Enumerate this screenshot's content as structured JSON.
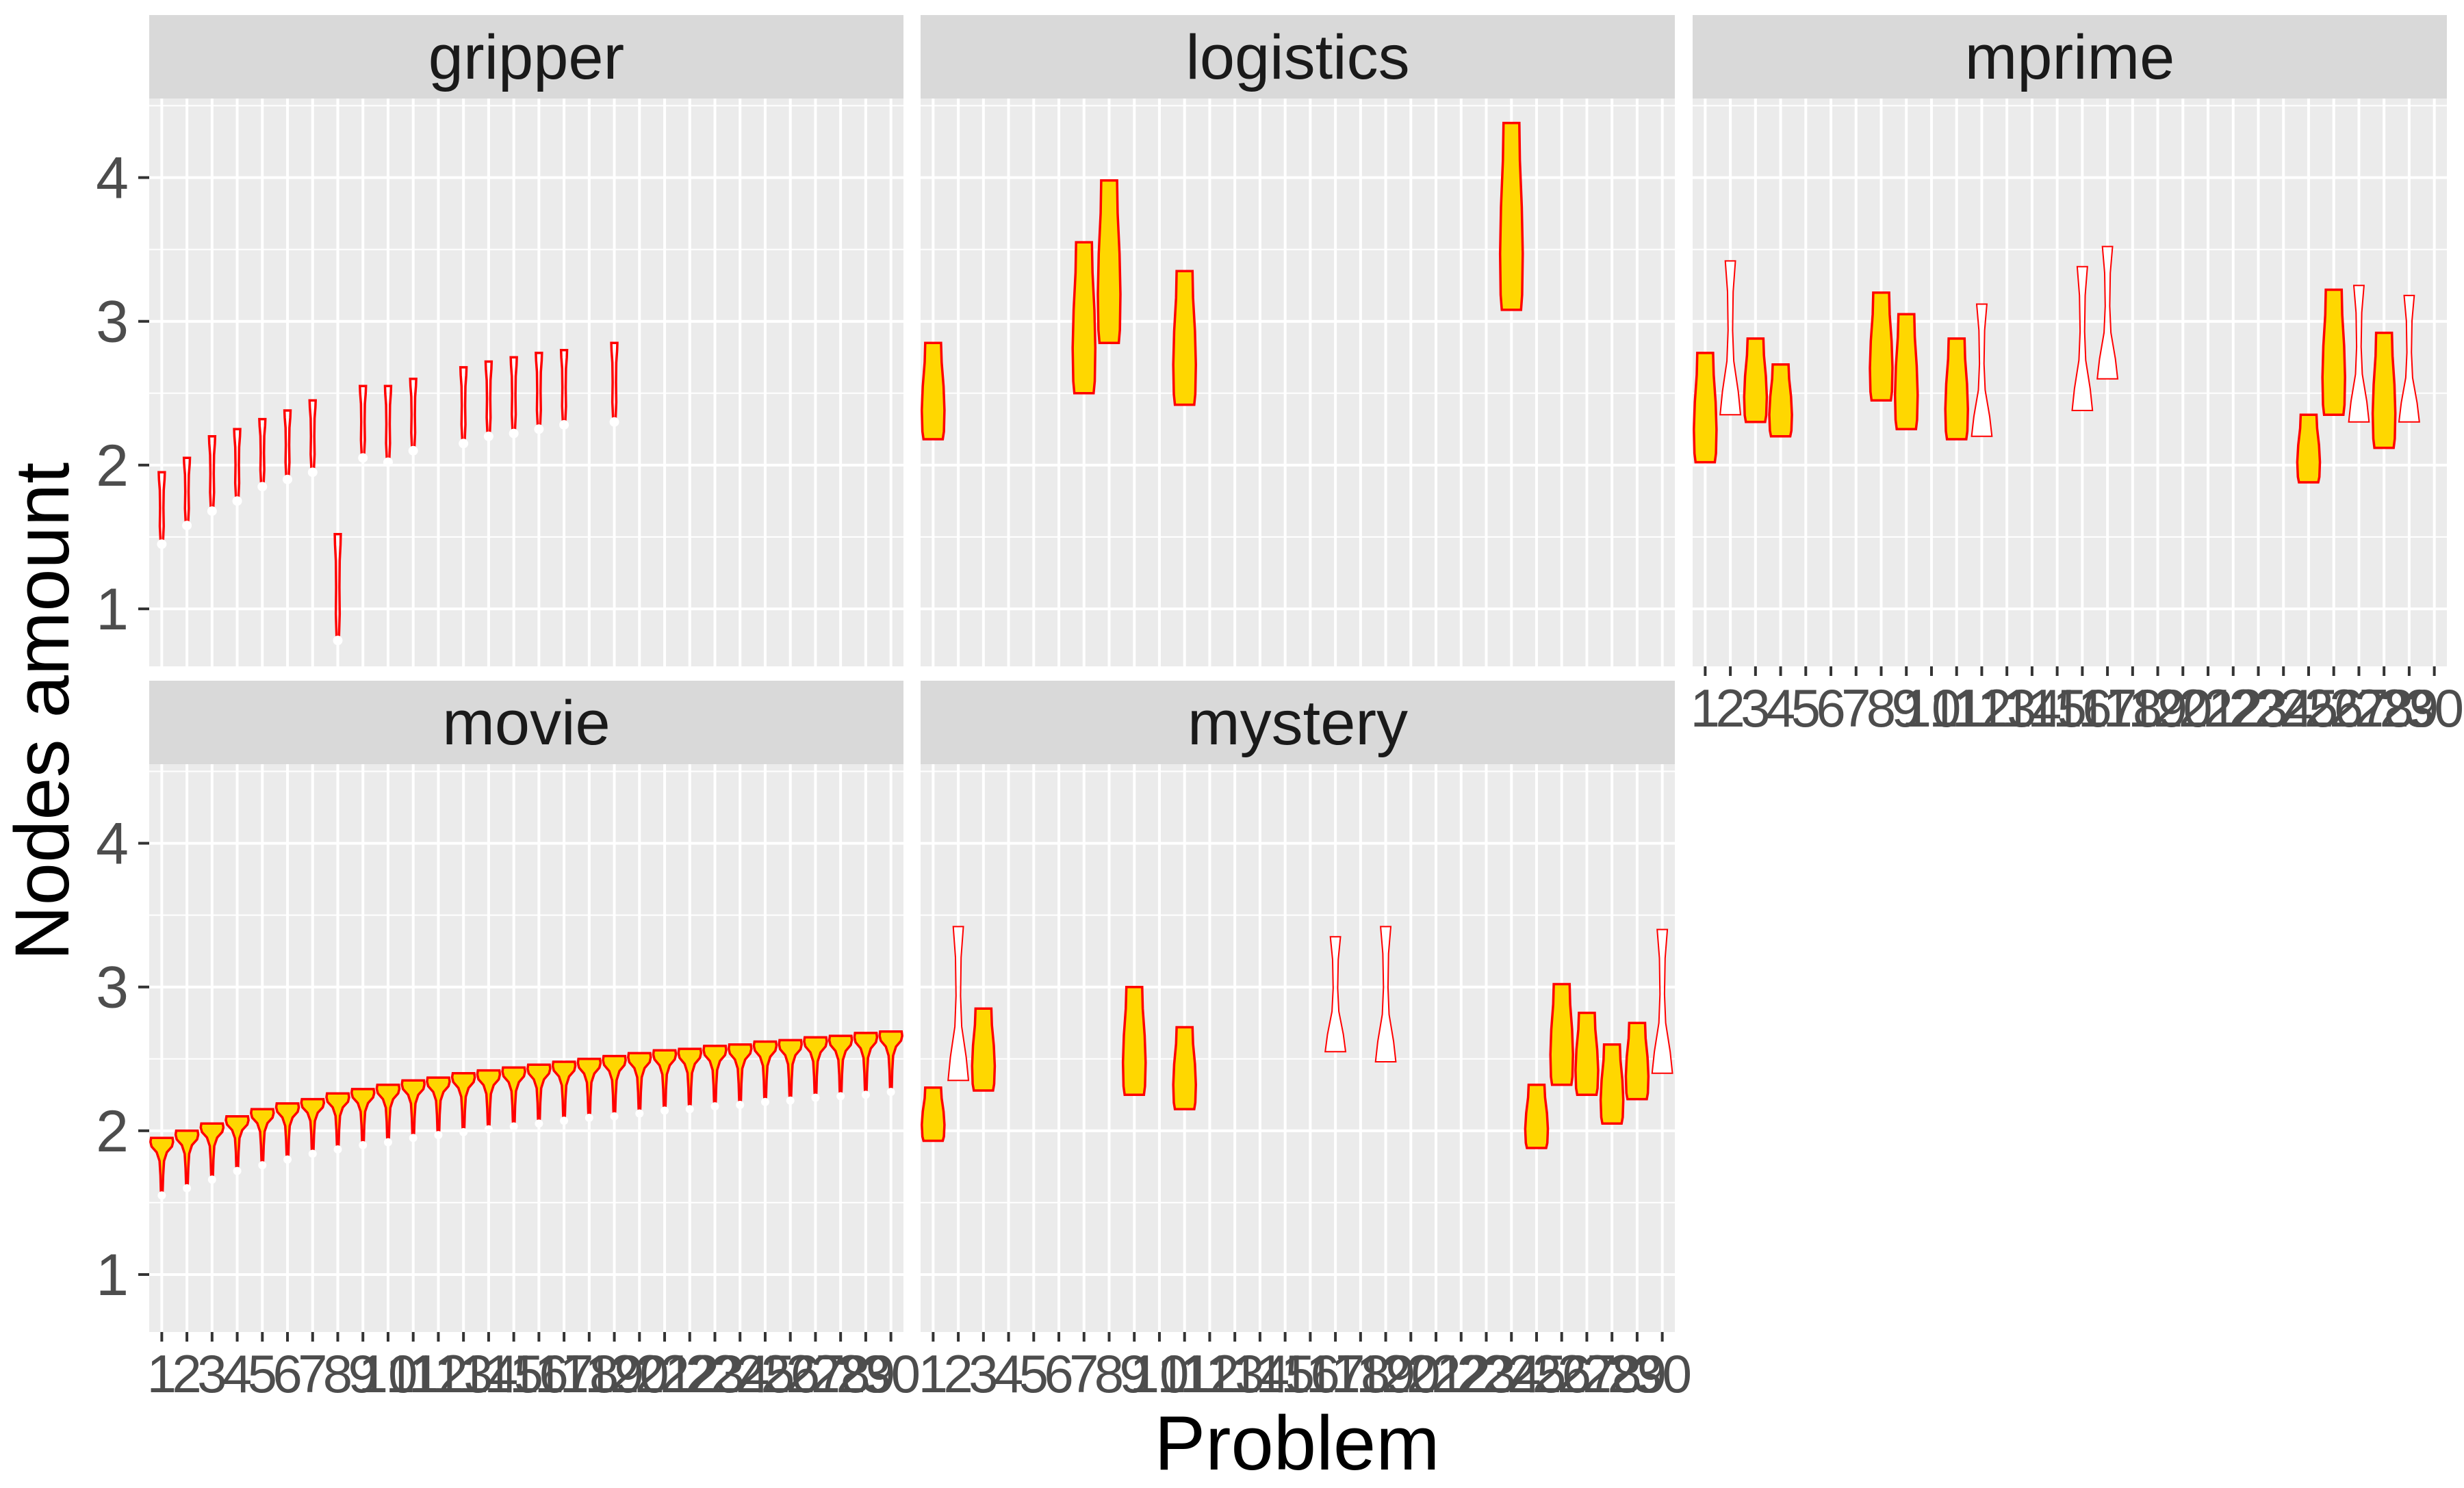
{
  "chart_data": {
    "type": "violin",
    "xlabel": "Problem",
    "ylabel": "Nodes amount",
    "ylim": [
      0.6,
      4.55
    ],
    "y_ticks": [
      "1",
      "2",
      "3",
      "4"
    ],
    "x_ticks": [
      "1",
      "2",
      "3",
      "4",
      "5",
      "6",
      "7",
      "8",
      "9",
      "10",
      "11",
      "12",
      "13",
      "14",
      "15",
      "16",
      "17",
      "18",
      "19",
      "20",
      "21",
      "22",
      "23",
      "24",
      "25",
      "26",
      "27",
      "28",
      "29",
      "30"
    ],
    "grid": true,
    "colors": {
      "outline": "#ff0000",
      "fill": "#ffd700",
      "panel_bg": "#ebebeb",
      "strip_bg": "#d9d9d9",
      "grid": "#ffffff"
    },
    "panels": [
      {
        "name": "gripper",
        "violins": [
          {
            "problem": 1,
            "min": 1.45,
            "max": 1.95,
            "style": "thin"
          },
          {
            "problem": 2,
            "min": 1.58,
            "max": 2.05,
            "style": "thin"
          },
          {
            "problem": 3,
            "min": 1.68,
            "max": 2.2,
            "style": "thin"
          },
          {
            "problem": 4,
            "min": 1.75,
            "max": 2.25,
            "style": "thin"
          },
          {
            "problem": 5,
            "min": 1.85,
            "max": 2.32,
            "style": "thin"
          },
          {
            "problem": 6,
            "min": 1.9,
            "max": 2.38,
            "style": "thin"
          },
          {
            "problem": 7,
            "min": 1.95,
            "max": 2.45,
            "style": "thin"
          },
          {
            "problem": 8,
            "min": 0.78,
            "max": 1.52,
            "style": "thin"
          },
          {
            "problem": 9,
            "min": 2.05,
            "max": 2.55,
            "style": "thin"
          },
          {
            "problem": 10,
            "min": 2.02,
            "max": 2.55,
            "style": "thin"
          },
          {
            "problem": 11,
            "min": 2.1,
            "max": 2.6,
            "style": "thin"
          },
          {
            "problem": 13,
            "min": 2.15,
            "max": 2.68,
            "style": "thin"
          },
          {
            "problem": 14,
            "min": 2.2,
            "max": 2.72,
            "style": "thin"
          },
          {
            "problem": 15,
            "min": 2.22,
            "max": 2.75,
            "style": "thin"
          },
          {
            "problem": 16,
            "min": 2.25,
            "max": 2.78,
            "style": "thin"
          },
          {
            "problem": 17,
            "min": 2.28,
            "max": 2.8,
            "style": "thin"
          },
          {
            "problem": 19,
            "min": 2.3,
            "max": 2.85,
            "style": "thin"
          }
        ]
      },
      {
        "name": "logistics",
        "violins": [
          {
            "problem": 1,
            "min": 2.18,
            "max": 2.85,
            "style": "filled"
          },
          {
            "problem": 7,
            "min": 2.5,
            "max": 3.55,
            "style": "filled"
          },
          {
            "problem": 8,
            "min": 2.85,
            "max": 3.98,
            "style": "filled"
          },
          {
            "problem": 11,
            "min": 2.42,
            "max": 3.35,
            "style": "filled"
          },
          {
            "problem": 24,
            "min": 3.08,
            "max": 4.38,
            "style": "filled"
          }
        ]
      },
      {
        "name": "mprime",
        "violins": [
          {
            "problem": 1,
            "min": 2.02,
            "max": 2.78,
            "style": "filled"
          },
          {
            "problem": 2,
            "min": 2.35,
            "max": 3.42,
            "style": "outline"
          },
          {
            "problem": 3,
            "min": 2.3,
            "max": 2.88,
            "style": "filled"
          },
          {
            "problem": 4,
            "min": 2.2,
            "max": 2.7,
            "style": "filled"
          },
          {
            "problem": 8,
            "min": 2.45,
            "max": 3.2,
            "style": "filled"
          },
          {
            "problem": 9,
            "min": 2.25,
            "max": 3.05,
            "style": "filled"
          },
          {
            "problem": 11,
            "min": 2.18,
            "max": 2.88,
            "style": "filled"
          },
          {
            "problem": 12,
            "min": 2.2,
            "max": 3.12,
            "style": "outline"
          },
          {
            "problem": 16,
            "min": 2.38,
            "max": 3.38,
            "style": "outline"
          },
          {
            "problem": 17,
            "min": 2.6,
            "max": 3.52,
            "style": "outline"
          },
          {
            "problem": 25,
            "min": 1.88,
            "max": 2.35,
            "style": "filled"
          },
          {
            "problem": 26,
            "min": 2.35,
            "max": 3.22,
            "style": "filled"
          },
          {
            "problem": 27,
            "min": 2.3,
            "max": 3.25,
            "style": "outline"
          },
          {
            "problem": 28,
            "min": 2.12,
            "max": 2.92,
            "style": "filled"
          },
          {
            "problem": 29,
            "min": 2.3,
            "max": 3.18,
            "style": "outline"
          }
        ]
      },
      {
        "name": "movie",
        "violins": [
          {
            "problem": 1,
            "min": 1.55,
            "max": 1.95,
            "style": "cone"
          },
          {
            "problem": 2,
            "min": 1.6,
            "max": 2.0,
            "style": "cone"
          },
          {
            "problem": 3,
            "min": 1.66,
            "max": 2.05,
            "style": "cone"
          },
          {
            "problem": 4,
            "min": 1.72,
            "max": 2.1,
            "style": "cone"
          },
          {
            "problem": 5,
            "min": 1.76,
            "max": 2.15,
            "style": "cone"
          },
          {
            "problem": 6,
            "min": 1.8,
            "max": 2.19,
            "style": "cone"
          },
          {
            "problem": 7,
            "min": 1.84,
            "max": 2.22,
            "style": "cone"
          },
          {
            "problem": 8,
            "min": 1.87,
            "max": 2.26,
            "style": "cone"
          },
          {
            "problem": 9,
            "min": 1.9,
            "max": 2.29,
            "style": "cone"
          },
          {
            "problem": 10,
            "min": 1.92,
            "max": 2.32,
            "style": "cone"
          },
          {
            "problem": 11,
            "min": 1.95,
            "max": 2.35,
            "style": "cone"
          },
          {
            "problem": 12,
            "min": 1.97,
            "max": 2.37,
            "style": "cone"
          },
          {
            "problem": 13,
            "min": 1.99,
            "max": 2.4,
            "style": "cone"
          },
          {
            "problem": 14,
            "min": 2.01,
            "max": 2.42,
            "style": "cone"
          },
          {
            "problem": 15,
            "min": 2.03,
            "max": 2.44,
            "style": "cone"
          },
          {
            "problem": 16,
            "min": 2.05,
            "max": 2.46,
            "style": "cone"
          },
          {
            "problem": 17,
            "min": 2.07,
            "max": 2.48,
            "style": "cone"
          },
          {
            "problem": 18,
            "min": 2.09,
            "max": 2.5,
            "style": "cone"
          },
          {
            "problem": 19,
            "min": 2.1,
            "max": 2.52,
            "style": "cone"
          },
          {
            "problem": 20,
            "min": 2.12,
            "max": 2.54,
            "style": "cone"
          },
          {
            "problem": 21,
            "min": 2.14,
            "max": 2.56,
            "style": "cone"
          },
          {
            "problem": 22,
            "min": 2.15,
            "max": 2.57,
            "style": "cone"
          },
          {
            "problem": 23,
            "min": 2.17,
            "max": 2.59,
            "style": "cone"
          },
          {
            "problem": 24,
            "min": 2.18,
            "max": 2.6,
            "style": "cone"
          },
          {
            "problem": 25,
            "min": 2.2,
            "max": 2.62,
            "style": "cone"
          },
          {
            "problem": 26,
            "min": 2.21,
            "max": 2.63,
            "style": "cone"
          },
          {
            "problem": 27,
            "min": 2.23,
            "max": 2.65,
            "style": "cone"
          },
          {
            "problem": 28,
            "min": 2.24,
            "max": 2.66,
            "style": "cone"
          },
          {
            "problem": 29,
            "min": 2.25,
            "max": 2.68,
            "style": "cone"
          },
          {
            "problem": 30,
            "min": 2.27,
            "max": 2.69,
            "style": "cone"
          }
        ]
      },
      {
        "name": "mystery",
        "violins": [
          {
            "problem": 1,
            "min": 1.93,
            "max": 2.3,
            "style": "filled"
          },
          {
            "problem": 2,
            "min": 2.35,
            "max": 3.42,
            "style": "outline"
          },
          {
            "problem": 3,
            "min": 2.28,
            "max": 2.85,
            "style": "filled"
          },
          {
            "problem": 9,
            "min": 2.25,
            "max": 3.0,
            "style": "filled"
          },
          {
            "problem": 11,
            "min": 2.15,
            "max": 2.72,
            "style": "filled"
          },
          {
            "problem": 17,
            "min": 2.55,
            "max": 3.35,
            "style": "outline"
          },
          {
            "problem": 19,
            "min": 2.48,
            "max": 3.42,
            "style": "outline"
          },
          {
            "problem": 25,
            "min": 1.88,
            "max": 2.32,
            "style": "filled"
          },
          {
            "problem": 26,
            "min": 2.32,
            "max": 3.02,
            "style": "filled"
          },
          {
            "problem": 27,
            "min": 2.25,
            "max": 2.82,
            "style": "filled"
          },
          {
            "problem": 28,
            "min": 2.05,
            "max": 2.6,
            "style": "filled"
          },
          {
            "problem": 29,
            "min": 2.22,
            "max": 2.75,
            "style": "filled"
          },
          {
            "problem": 30,
            "min": 2.4,
            "max": 3.4,
            "style": "outline"
          }
        ]
      }
    ]
  }
}
